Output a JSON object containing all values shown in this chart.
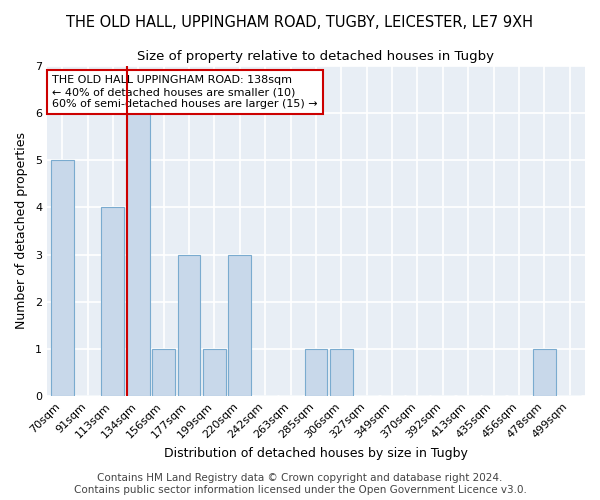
{
  "title1": "THE OLD HALL, UPPINGHAM ROAD, TUGBY, LEICESTER, LE7 9XH",
  "title2": "Size of property relative to detached houses in Tugby",
  "xlabel": "Distribution of detached houses by size in Tugby",
  "ylabel": "Number of detached properties",
  "categories": [
    "70sqm",
    "91sqm",
    "113sqm",
    "134sqm",
    "156sqm",
    "177sqm",
    "199sqm",
    "220sqm",
    "242sqm",
    "263sqm",
    "285sqm",
    "306sqm",
    "327sqm",
    "349sqm",
    "370sqm",
    "392sqm",
    "413sqm",
    "435sqm",
    "456sqm",
    "478sqm",
    "499sqm"
  ],
  "values": [
    5,
    0,
    4,
    6,
    1,
    3,
    1,
    3,
    0,
    0,
    1,
    1,
    0,
    0,
    0,
    0,
    0,
    0,
    0,
    1,
    0
  ],
  "bar_color": "#c8d8ea",
  "bar_edge_color": "#7aabcf",
  "red_line_index": 3,
  "annotation_title": "THE OLD HALL UPPINGHAM ROAD: 138sqm",
  "annotation_line1": "← 40% of detached houses are smaller (10)",
  "annotation_line2": "60% of semi-detached houses are larger (15) →",
  "ylim": [
    0,
    7
  ],
  "yticks": [
    0,
    1,
    2,
    3,
    4,
    5,
    6,
    7
  ],
  "footer1": "Contains HM Land Registry data © Crown copyright and database right 2024.",
  "footer2": "Contains public sector information licensed under the Open Government Licence v3.0.",
  "background_color": "#e8eef5",
  "grid_color": "#ffffff",
  "annotation_box_color": "#ffffff",
  "annotation_box_edge": "#cc0000",
  "title1_fontsize": 10.5,
  "title2_fontsize": 9.5,
  "xlabel_fontsize": 9,
  "ylabel_fontsize": 9,
  "tick_fontsize": 8,
  "footer_fontsize": 7.5
}
